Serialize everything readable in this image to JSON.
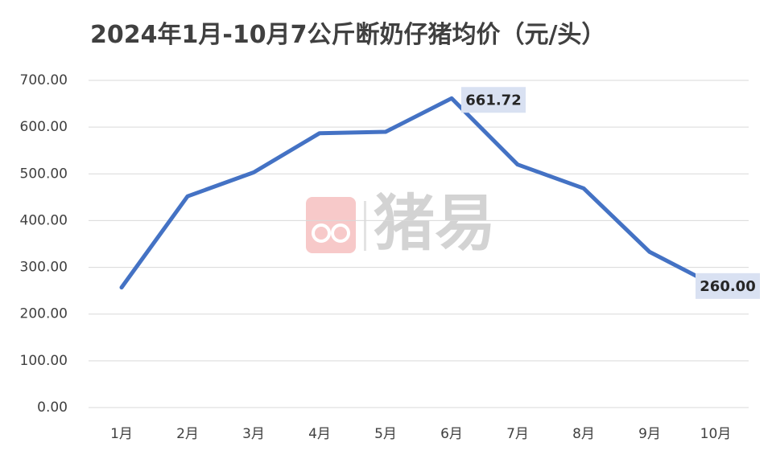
{
  "chart_data": {
    "type": "line",
    "title": "2024年1月-10月7公斤断奶仔猪均价（元/头）",
    "categories": [
      "1月",
      "2月",
      "3月",
      "4月",
      "5月",
      "6月",
      "7月",
      "8月",
      "9月",
      "10月"
    ],
    "series": [
      {
        "values": [
          257.0,
          452.0,
          503.0,
          587.0,
          590.0,
          661.72,
          520.0,
          469.0,
          333.0,
          260.0
        ]
      }
    ],
    "data_labels": [
      {
        "index": 5,
        "text": "661.72"
      },
      {
        "index": 9,
        "text": "260.00"
      }
    ],
    "y_ticks": [
      "0.00",
      "100.00",
      "200.00",
      "300.00",
      "400.00",
      "500.00",
      "600.00",
      "700.00"
    ],
    "ylim": [
      0,
      700
    ],
    "grid": true,
    "legend": "none",
    "line_color": "#4472c4",
    "watermark": "猪易"
  }
}
